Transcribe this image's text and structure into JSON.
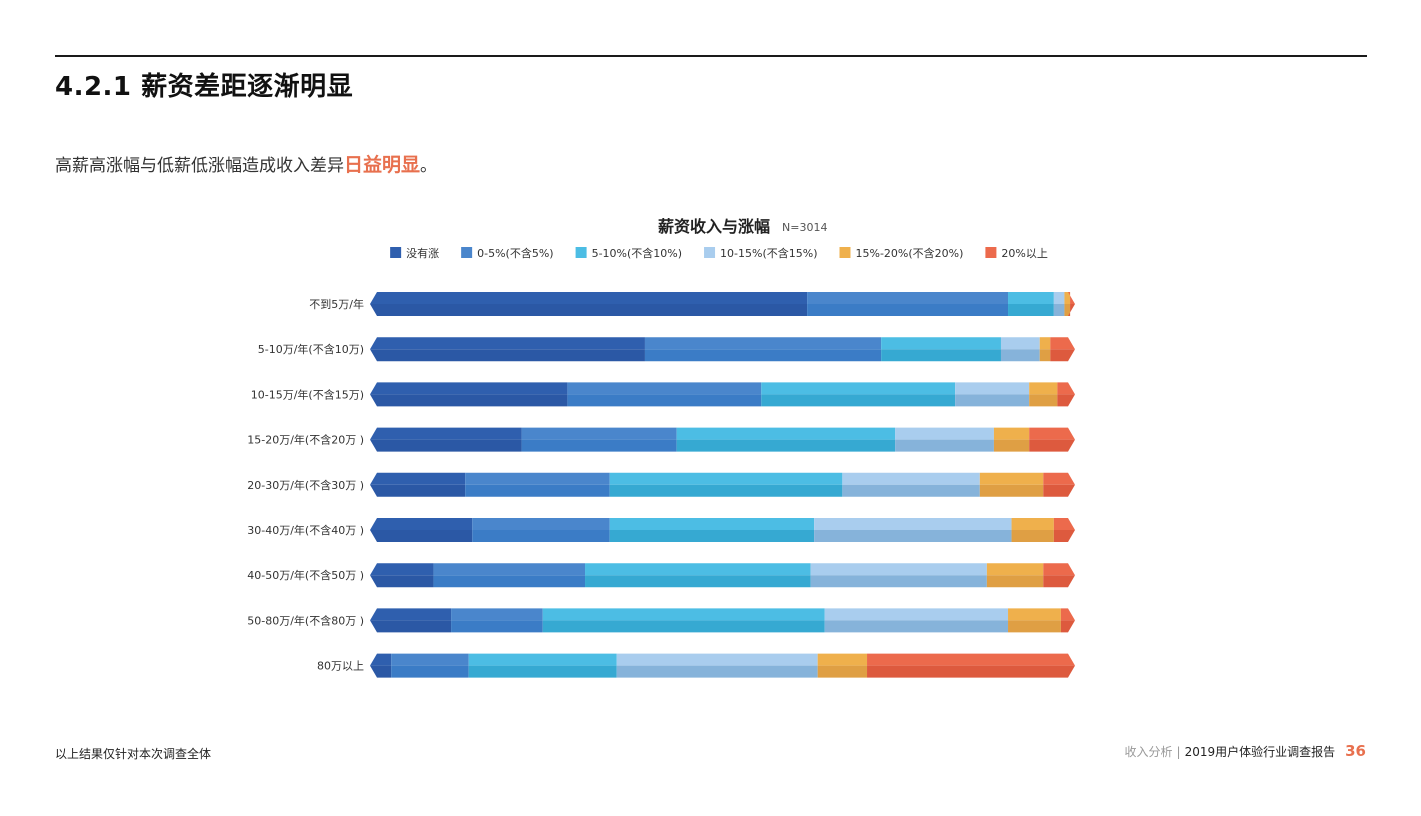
{
  "header": {
    "title": "4.2.1 薪资差距逐渐明显"
  },
  "intro": {
    "text": "高薪高涨幅与低薪低涨幅造成收入差异",
    "highlight": "日益明显",
    "suffix": "。"
  },
  "footer": {
    "note": "以上结果仅针对本次调查全体",
    "section": "收入分析",
    "separator": "|",
    "report": "2019用户体验行业调查报告",
    "page": "36"
  },
  "colors": {
    "accent": "#e8704e",
    "series": [
      "#2f5fae",
      "#4a86cc",
      "#4cbde4",
      "#a9cdee",
      "#efb04c",
      "#ec6a4c"
    ],
    "series_dark": [
      "#2b58a5",
      "#3b7cc6",
      "#36a9d2",
      "#86b3da",
      "#df9f44",
      "#dd5a3e"
    ]
  },
  "chart_data": {
    "type": "bar",
    "stacked": true,
    "orientation": "horizontal",
    "title": "薪资收入与涨幅",
    "note": "N=3014",
    "legend_position": "top",
    "categories": [
      "不到5万/年",
      "5-10万/年(不含10万)",
      "10-15万/年(不含15万)",
      "15-20万/年(不含20万 )",
      "20-30万/年(不含30万 )",
      "30-40万/年(不含40万 )",
      "40-50万/年(不含50万 )",
      "50-80万/年(不含80万 )",
      "80万以上"
    ],
    "series": [
      {
        "name": "没有涨",
        "values": [
          62,
          39,
          28,
          21.5,
          13.5,
          14.5,
          9,
          11.5,
          3
        ]
      },
      {
        "name": "0-5%(不含5%)",
        "values": [
          28.5,
          33.5,
          27.5,
          22,
          20.5,
          19.5,
          21.5,
          13,
          11
        ]
      },
      {
        "name": "5-10%(不含10%)",
        "values": [
          6.5,
          17,
          27.5,
          31,
          33,
          29,
          32,
          40,
          21
        ]
      },
      {
        "name": "10-15%(不含15%)",
        "values": [
          1.5,
          5.5,
          10.5,
          14,
          19.5,
          28,
          25,
          26,
          28.5
        ]
      },
      {
        "name": "15%-20%(不含20%)",
        "values": [
          0.8,
          1.5,
          4,
          5,
          9,
          6,
          8,
          7.5,
          7
        ]
      },
      {
        "name": "20%以上",
        "values": [
          0.7,
          3.5,
          2.5,
          6.5,
          4.5,
          3,
          4.5,
          2,
          29.5
        ]
      }
    ],
    "xlim": [
      0,
      100
    ],
    "grid": false
  }
}
